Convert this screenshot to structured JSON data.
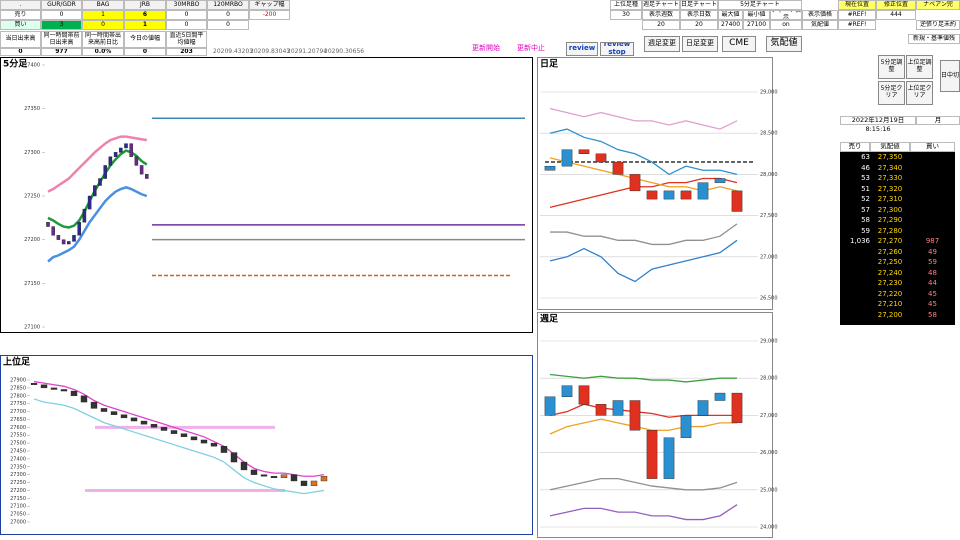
{
  "left_table": {
    "header": [
      ".",
      "GUR/GDR",
      "BAG",
      "JRB",
      "30MRBO",
      "120MRBO",
      "ギャップ幅"
    ],
    "rows": [
      [
        "売り",
        "0",
        "1",
        "6",
        "0",
        "0",
        "-200"
      ],
      [
        "買い",
        "3",
        "0",
        "1",
        "0",
        "0"
      ]
    ],
    "stats_header": [
      "当日出来高",
      "同一時間帯前日出来高",
      "同一時間帯出来高前日比",
      "今日の値幅",
      "直近5日間平均値幅"
    ],
    "stats": [
      "0",
      "977",
      "0.0%",
      "0",
      "203"
    ]
  },
  "codes": [
    "20209.43203",
    "20209.83043",
    "20291.20794",
    "20290.30656"
  ],
  "buttons": [
    "更新開始",
    "更新中止",
    "review",
    "review stop",
    "週足変更",
    "日足変更",
    "CME",
    "気配値"
  ],
  "right_table": [
    "上位足種",
    "週足チャート",
    "日足チャート",
    "5分足チャート",
    "現在位置",
    "修正位置",
    "ナベアン完",
    "30",
    "表示週数",
    "表示日数",
    "最大値",
    "最小値",
    "チャート表示",
    "表示価格",
    "#REF!",
    "444",
    "20",
    "20",
    "27400",
    "27100",
    "on",
    "気配値",
    "#REF!",
    "逆張り足未約",
    "新規・基準値残"
  ],
  "side_buttons": [
    "5分足調整",
    "上位足調整",
    "5分足クリア",
    "上位足クリア",
    "日中切"
  ],
  "order_book": {
    "date": "2022年12月19日",
    "weekday": "月",
    "time": "8:15:16",
    "header": [
      "売り",
      "気配値",
      "買い"
    ],
    "rows": [
      {
        "sell": "63",
        "price": "27,350"
      },
      {
        "sell": "46",
        "price": "27,340"
      },
      {
        "sell": "53",
        "price": "27,330"
      },
      {
        "sell": "51",
        "price": "27,320"
      },
      {
        "sell": "52",
        "price": "27,310"
      },
      {
        "sell": "57",
        "price": "27,300"
      },
      {
        "sell": "58",
        "price": "27,290"
      },
      {
        "sell": "59",
        "price": "27,280"
      },
      {
        "sell": "1,036",
        "price": "27,270",
        "buy": "987"
      },
      {
        "price": "27,260",
        "buy": "49"
      },
      {
        "price": "27,250",
        "buy": "59"
      },
      {
        "price": "27,240",
        "buy": "48"
      },
      {
        "price": "27,230",
        "buy": "44"
      },
      {
        "price": "27,220",
        "buy": "45"
      },
      {
        "price": "27,210",
        "buy": "45"
      },
      {
        "price": "27,200",
        "buy": "58"
      }
    ]
  },
  "charts": [
    {
      "title": "5分足",
      "ylim": [
        27100,
        27400
      ],
      "yticks": [
        27100,
        27150,
        27200,
        27250,
        27300,
        27350,
        27400
      ],
      "grid": false,
      "up_color": "#2a2a90",
      "down_color": "#6a2a8a",
      "open": [
        27220,
        27215,
        27205,
        27200,
        27195,
        27198,
        27205,
        27220,
        27235,
        27250,
        27262,
        27270,
        27285,
        27295,
        27300,
        27305,
        27310,
        27295,
        27285,
        27275
      ],
      "close": [
        27215,
        27205,
        27200,
        27195,
        27198,
        27205,
        27220,
        27235,
        27250,
        27262,
        27270,
        27285,
        27295,
        27300,
        27305,
        27310,
        27295,
        27285,
        27275,
        27270
      ],
      "lines": [
        {
          "color": "#1a9a3a",
          "values": [
            27225,
            27222,
            27218,
            27215,
            27214,
            27216,
            27222,
            27232,
            27244,
            27256,
            27266,
            27276,
            27285,
            27292,
            27298,
            27302,
            27300,
            27296,
            27290,
            27286
          ]
        },
        {
          "color": "#4a90e0",
          "values": [
            27175,
            27180,
            27182,
            27185,
            27188,
            27192,
            27200,
            27210,
            27220,
            27228,
            27236,
            27244,
            27250,
            27255,
            27258,
            27260,
            27258,
            27255,
            27252,
            27250
          ]
        },
        {
          "color": "#f080b0",
          "values": [
            27255,
            27258,
            27262,
            27266,
            27270,
            27276,
            27282,
            27288,
            27294,
            27300,
            27305,
            27310,
            27314,
            27316,
            27318,
            27318,
            27317,
            27316,
            27315,
            27314
          ]
        }
      ],
      "hlines": [
        {
          "value": 27339,
          "color": "#3a8ab8",
          "dash": false
        },
        {
          "value": 27217,
          "color": "#7030a0",
          "dash": false
        },
        {
          "value": 27200,
          "color": "#888888",
          "dash": false
        },
        {
          "value": 27159,
          "color": "#d06020",
          "dash": true
        }
      ]
    },
    {
      "title": "上位足",
      "ylim": [
        27000,
        27900
      ],
      "yticks": [
        27000,
        27050,
        27100,
        27150,
        27200,
        27250,
        27300,
        27350,
        27400,
        27450,
        27500,
        27550,
        27600,
        27650,
        27700,
        27750,
        27800,
        27850,
        27900
      ],
      "grid": false,
      "up_color": "#e07020",
      "down_color": "#333333",
      "open": [
        27880,
        27870,
        27850,
        27840,
        27830,
        27800,
        27760,
        27720,
        27700,
        27680,
        27660,
        27640,
        27620,
        27600,
        27580,
        27560,
        27540,
        27520,
        27500,
        27480,
        27440,
        27380,
        27330,
        27300,
        27290,
        27280,
        27300,
        27260,
        27230,
        27260
      ],
      "close": [
        27870,
        27850,
        27840,
        27830,
        27800,
        27760,
        27720,
        27700,
        27680,
        27660,
        27640,
        27620,
        27600,
        27580,
        27560,
        27540,
        27520,
        27500,
        27480,
        27440,
        27380,
        27330,
        27300,
        27290,
        27280,
        27300,
        27260,
        27230,
        27260,
        27290
      ],
      "lines": [
        {
          "color": "#e040d0",
          "values": [
            27890,
            27880,
            27870,
            27860,
            27840,
            27810,
            27770,
            27740,
            27720,
            27700,
            27680,
            27660,
            27640,
            27620,
            27600,
            27580,
            27560,
            27540,
            27510,
            27480,
            27430,
            27380,
            27340,
            27320,
            27310,
            27310,
            27300,
            27290,
            27290,
            27300
          ]
        },
        {
          "color": "#80d0e0",
          "values": [
            27780,
            27760,
            27750,
            27740,
            27720,
            27690,
            27660,
            27630,
            27610,
            27590,
            27570,
            27550,
            27530,
            27510,
            27490,
            27470,
            27450,
            27430,
            27410,
            27380,
            27330,
            27280,
            27250,
            27230,
            27210,
            27200,
            27190,
            27180,
            27190,
            27200
          ]
        }
      ],
      "hlines": [
        {
          "value": 27600,
          "color": "#f0b0e8",
          "dash": false
        },
        {
          "value": 27200,
          "color": "#f0b0e8",
          "dash": false
        }
      ]
    },
    {
      "title": "日足",
      "ylim": [
        26500,
        29000
      ],
      "yticks": [
        {
          "value": 26500,
          "label": "26,500"
        },
        {
          "value": 27000,
          "label": "27,000"
        },
        {
          "value": 27500,
          "label": "27,500"
        },
        {
          "value": 28000,
          "label": "28,000"
        },
        {
          "value": 28500,
          "label": "28,500"
        },
        {
          "value": 29000,
          "label": "29,000"
        }
      ],
      "grid": true,
      "up_color": "#2a90d0",
      "down_color": "#e03020",
      "open": [
        28050,
        28100,
        28300,
        28250,
        28150,
        28000,
        27800,
        27700,
        27800,
        27700,
        27900,
        27800
      ],
      "close": [
        28100,
        28300,
        28250,
        28150,
        28000,
        27800,
        27700,
        27800,
        27700,
        27900,
        27950,
        27550
      ],
      "lines": [
        {
          "color": "#e0a0d0",
          "values": [
            28800,
            28750,
            28700,
            28750,
            28700,
            28650,
            28650,
            28600,
            28650,
            28600,
            28550,
            28650
          ]
        },
        {
          "color": "#2a90d0",
          "values": [
            28500,
            28550,
            28450,
            28400,
            28300,
            28250,
            28150,
            28000,
            28100,
            28050,
            28050,
            28000
          ]
        },
        {
          "color": "#e03020",
          "values": [
            27600,
            27650,
            27700,
            27750,
            27800,
            27850,
            27850,
            27900,
            27900,
            27950,
            27950,
            27900
          ]
        },
        {
          "color": "#f0a020",
          "values": [
            28200,
            28150,
            28100,
            28050,
            28000,
            27950,
            27900,
            27850,
            27850,
            27800,
            27850,
            27800
          ]
        },
        {
          "color": "#909090",
          "values": [
            27300,
            27300,
            27250,
            27250,
            27200,
            27200,
            27150,
            27150,
            27200,
            27200,
            27250,
            27400
          ]
        },
        {
          "color": "#3080d0",
          "values": [
            26950,
            27000,
            27100,
            27000,
            26800,
            26700,
            26850,
            26900,
            26950,
            27000,
            27050,
            27200
          ]
        }
      ],
      "hlines": [
        {
          "value": 28150,
          "color": "#333333",
          "dash": true
        }
      ]
    },
    {
      "title": "週足",
      "ylim": [
        24000,
        29000
      ],
      "yticks": [
        {
          "value": 24000,
          "label": "24,000"
        },
        {
          "value": 25000,
          "label": "25,000"
        },
        {
          "value": 26000,
          "label": "26,000"
        },
        {
          "value": 27000,
          "label": "27,000"
        },
        {
          "value": 28000,
          "label": "28,000"
        },
        {
          "value": 29000,
          "label": "29,000"
        }
      ],
      "grid": true,
      "up_color": "#2a90d0",
      "down_color": "#e03020",
      "open": [
        27000,
        27500,
        27800,
        27300,
        27000,
        27400,
        26600,
        25300,
        26400,
        27000,
        27400,
        27600
      ],
      "close": [
        27500,
        27800,
        27300,
        27000,
        27400,
        26600,
        25300,
        26400,
        27000,
        27400,
        27600,
        26800
      ],
      "lines": [
        {
          "color": "#40a040",
          "values": [
            28100,
            28050,
            28000,
            28050,
            28000,
            28000,
            27950,
            27950,
            27900,
            27950,
            28000,
            28000
          ]
        },
        {
          "color": "#e03020",
          "values": [
            27000,
            27100,
            27300,
            27200,
            27150,
            27100,
            27050,
            26950,
            27000,
            27000,
            27000,
            27000
          ]
        },
        {
          "color": "#f0a020",
          "values": [
            26500,
            26700,
            26800,
            26900,
            26800,
            26700,
            26600,
            26600,
            26700,
            26700,
            26800,
            26800
          ]
        },
        {
          "color": "#909090",
          "values": [
            25000,
            25100,
            25200,
            25300,
            25300,
            25200,
            25100,
            25050,
            25000,
            25000,
            25050,
            25200
          ]
        },
        {
          "color": "#9060c0",
          "values": [
            24300,
            24400,
            24500,
            24500,
            24400,
            24400,
            24300,
            24300,
            24200,
            24200,
            24300,
            24600
          ]
        }
      ],
      "hlines": []
    }
  ]
}
